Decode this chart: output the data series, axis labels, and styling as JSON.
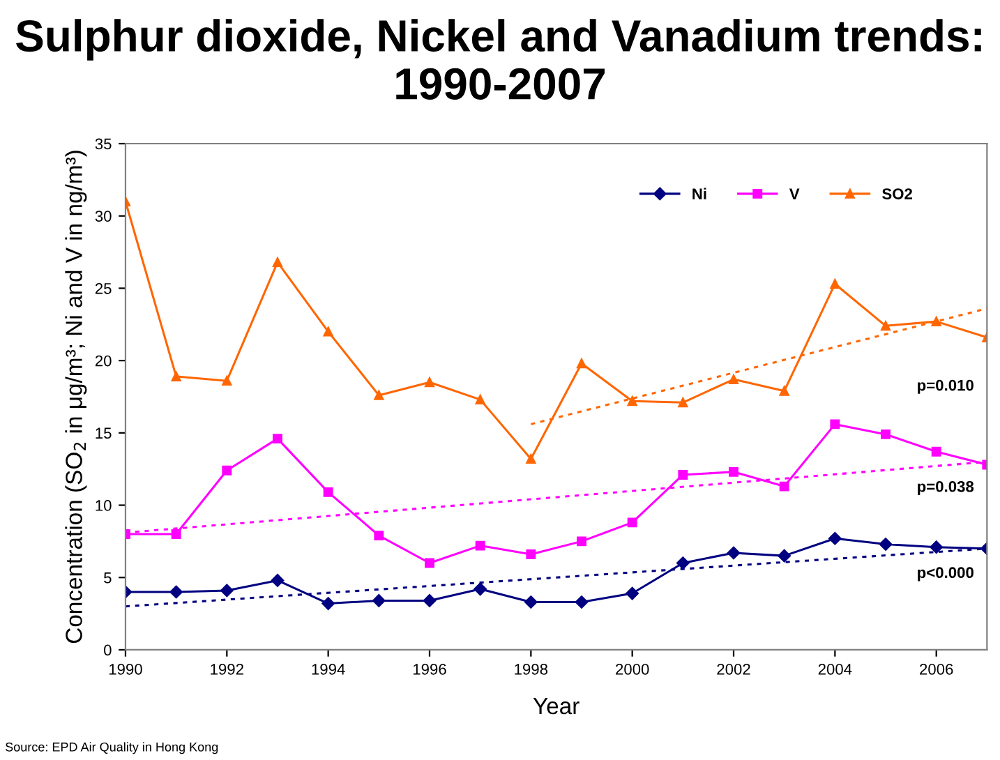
{
  "chart_data": {
    "type": "line",
    "title": "Sulphur dioxide, Nickel and Vanadium trends: 1990-2007",
    "xlabel": "Year",
    "ylabel": "Concentration (SO$_{2}$ in μg/m³; Ni and V in ng/m³)",
    "x": [
      1990,
      1991,
      1992,
      1993,
      1994,
      1995,
      1996,
      1997,
      1998,
      1999,
      2000,
      2001,
      2002,
      2003,
      2004,
      2005,
      2006,
      2007
    ],
    "series": [
      {
        "name": "Ni",
        "color": "#000080",
        "marker": "diamond",
        "values": [
          4.0,
          4.0,
          4.1,
          4.8,
          3.2,
          3.4,
          3.4,
          4.2,
          3.3,
          3.3,
          3.9,
          6.0,
          6.7,
          6.5,
          7.7,
          7.3,
          7.1,
          7.0
        ]
      },
      {
        "name": "V",
        "color": "#ff00ff",
        "marker": "square",
        "values": [
          8.0,
          8.0,
          12.4,
          14.6,
          10.9,
          7.9,
          6.0,
          7.2,
          6.6,
          7.5,
          8.8,
          12.1,
          12.3,
          11.3,
          15.6,
          14.9,
          13.7,
          12.8
        ]
      },
      {
        "name": "SO2",
        "color": "#ff6600",
        "marker": "triangle",
        "values": [
          31.0,
          18.9,
          18.6,
          26.8,
          22.0,
          17.6,
          18.5,
          17.3,
          13.2,
          19.8,
          17.2,
          17.1,
          18.7,
          17.9,
          25.3,
          22.4,
          22.7,
          21.6
        ]
      },
      {
        "color": "#ff6600",
        "x": [
          1998,
          2007
        ],
        "values": [
          15.6,
          23.6
        ],
        "line_style": "dotted",
        "marker": "none"
      },
      {
        "color": "#ff00ff",
        "x": [
          1990,
          2007
        ],
        "values": [
          8.1,
          13.0
        ],
        "line_style": "dotted",
        "marker": "none"
      },
      {
        "color": "#000080",
        "x": [
          1990,
          2007
        ],
        "values": [
          3.0,
          7.0
        ],
        "line_style": "dotted",
        "marker": "none"
      }
    ],
    "xlim": [
      1990,
      2007
    ],
    "xticks": [
      1990,
      1992,
      1994,
      1996,
      1998,
      2000,
      2002,
      2004,
      2006
    ],
    "ylim": [
      0,
      35
    ],
    "yticks": [
      0,
      5,
      10,
      15,
      20,
      25,
      30,
      35
    ],
    "grid": false,
    "legend": "top right",
    "annotations": [
      "p=0.010",
      "p=0.038",
      "p<0.000",
      "Source: EPD Air Quality in Hong Kong"
    ]
  }
}
